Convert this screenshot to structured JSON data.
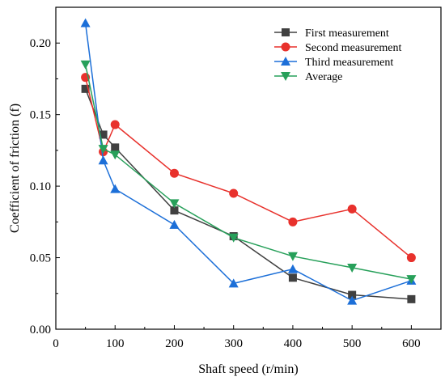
{
  "chart_data": {
    "type": "line",
    "title": "",
    "xlabel": "Shaft speed (r/min)",
    "ylabel": "Coefficient of friction (f)",
    "xlim": [
      0,
      650
    ],
    "ylim": [
      0,
      0.225
    ],
    "xticks": [
      0,
      100,
      200,
      300,
      400,
      500,
      600
    ],
    "xtick_labels": [
      "0",
      "100",
      "200",
      "300",
      "400",
      "500",
      "600"
    ],
    "yticks": [
      0,
      0.05,
      0.1,
      0.15,
      0.2
    ],
    "ytick_labels": [
      "0.00",
      "0.05",
      "0.10",
      "0.15",
      "0.20"
    ],
    "legend_position": "top-right",
    "grid": false,
    "series": [
      {
        "name": "First measurement",
        "color": "#404040",
        "marker": "square",
        "x": [
          50,
          80,
          100,
          200,
          300,
          400,
          500,
          600
        ],
        "y": [
          0.168,
          0.136,
          0.127,
          0.083,
          0.065,
          0.036,
          0.024,
          0.021
        ]
      },
      {
        "name": "Second measurement",
        "color": "#e8312c",
        "marker": "circle",
        "x": [
          50,
          80,
          100,
          200,
          300,
          400,
          500,
          600
        ],
        "y": [
          0.176,
          0.124,
          0.143,
          0.109,
          0.095,
          0.075,
          0.084,
          0.05
        ]
      },
      {
        "name": "Third measurement",
        "color": "#1c6fd8",
        "marker": "triangle-up",
        "x": [
          50,
          80,
          100,
          200,
          300,
          400,
          500,
          600
        ],
        "y": [
          0.214,
          0.118,
          0.098,
          0.073,
          0.032,
          0.042,
          0.02,
          0.034
        ]
      },
      {
        "name": "Average",
        "color": "#27a05a",
        "marker": "triangle-down",
        "x": [
          50,
          80,
          100,
          200,
          300,
          400,
          500,
          600
        ],
        "y": [
          0.185,
          0.126,
          0.122,
          0.088,
          0.064,
          0.051,
          0.043,
          0.035
        ]
      }
    ]
  }
}
